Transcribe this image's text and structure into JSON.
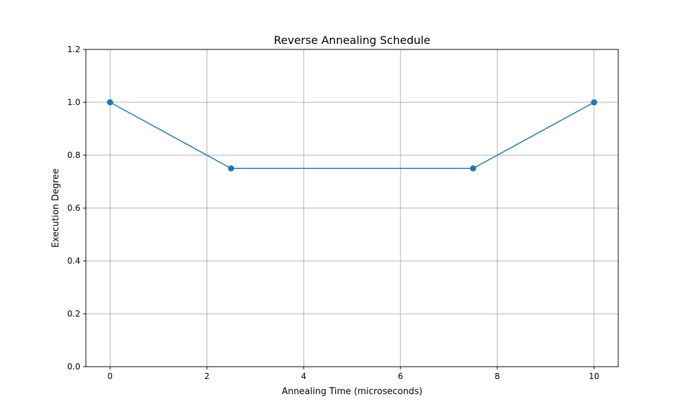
{
  "chart_data": {
    "type": "line",
    "title": "Reverse Annealing Schedule",
    "xlabel": "Annealing Time (microseconds)",
    "ylabel": "Execution Degree",
    "xlim": [
      -0.5,
      10.5
    ],
    "ylim": [
      0.0,
      1.2
    ],
    "xticks": [
      0,
      2,
      4,
      6,
      8,
      10
    ],
    "xtick_labels": [
      "0",
      "2",
      "4",
      "6",
      "8",
      "10"
    ],
    "yticks": [
      0.0,
      0.2,
      0.4,
      0.6,
      0.8,
      1.0,
      1.2
    ],
    "ytick_labels": [
      "0.0",
      "0.2",
      "0.4",
      "0.6",
      "0.8",
      "1.0",
      "1.2"
    ],
    "grid": true,
    "series": [
      {
        "x": [
          0,
          2.5,
          7.5,
          10
        ],
        "y": [
          1.0,
          0.75,
          0.75,
          1.0
        ],
        "color": "#1f77b4",
        "marker": "circle"
      }
    ]
  }
}
